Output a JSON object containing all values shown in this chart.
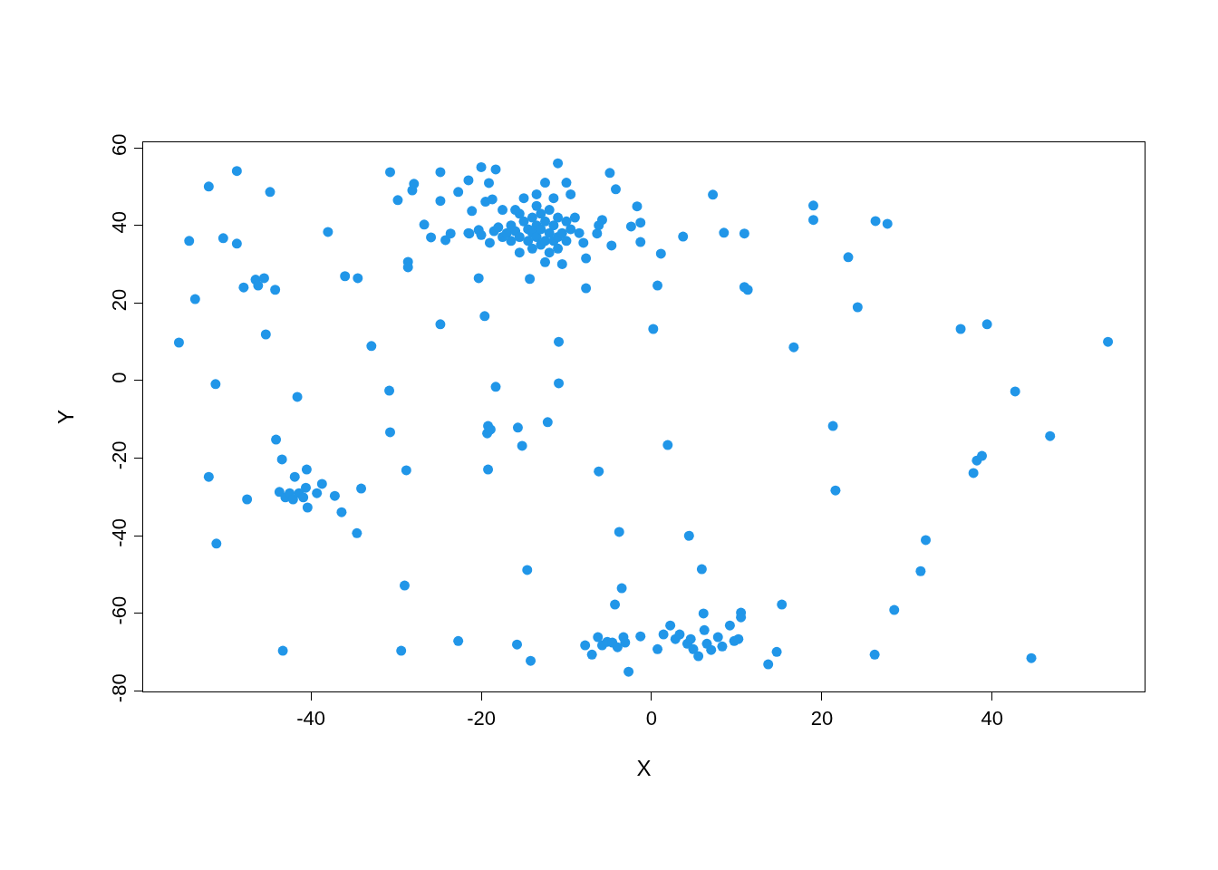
{
  "chart_data": {
    "type": "scatter",
    "xlabel": "X",
    "ylabel": "Y",
    "color": "#2196e8",
    "marker": "circle",
    "legend": false,
    "xlim": [
      -59.7,
      57.9
    ],
    "ylim": [
      -80.1,
      61.4
    ],
    "xticks": [
      -40,
      -20,
      0,
      20,
      40
    ],
    "yticks": [
      -80,
      -60,
      -40,
      -20,
      0,
      20,
      40,
      60
    ],
    "x": [
      -55.5,
      -54.3,
      -53.6,
      -52,
      -51.2,
      -52,
      -51.1,
      -50.3,
      -48.7,
      -48.7,
      -47.9,
      -47.5,
      -46.5,
      -46.2,
      -45.5,
      -45.3,
      -44.8,
      -44.2,
      -44.1,
      -43.4,
      -43.3,
      -43.7,
      -43.0,
      -42.5,
      -42.1,
      -41.9,
      -41.4,
      -40.9,
      -40.5,
      -40.4,
      -40.6,
      -39.3,
      -38.7,
      -37.2,
      -36.4,
      -34.6,
      -34.1,
      -41.6,
      -38,
      -36,
      -34.5,
      -32.9,
      -30.8,
      -30.7,
      -30.7,
      -29.8,
      -29.4,
      -29,
      -28.8,
      -28.6,
      -28.6,
      -28.1,
      -27.9,
      -26.7,
      -25.9,
      -24.8,
      -24.8,
      -24.8,
      -24.2,
      -23.6,
      -22.7,
      -22.7,
      -21.5,
      -21.4,
      -21.1,
      -20.3,
      -20.3,
      -20,
      -19.6,
      -19.5,
      -19.3,
      -19.2,
      -18.9,
      -19.2,
      -19.1,
      -18.7,
      -18.3,
      -18.3,
      -15.7,
      -15.2,
      -14.6,
      -14.2,
      -15.8,
      -14.3,
      -12.2,
      -10.9,
      -10.9,
      -11,
      -7.7,
      -7.7,
      -7.8,
      -7,
      -6.3,
      -5.8,
      -5.2,
      -4.6,
      -4,
      -3.3,
      -3.1,
      -6.2,
      -4.3,
      -3.5,
      -3.8,
      -2.7,
      -1.3,
      0.7,
      -4.9,
      -4.2,
      -4.7,
      -2.4,
      -1.7,
      -1.3,
      -1.3,
      -6.4,
      -5.8,
      -6.2,
      0.2,
      0.7,
      1.1,
      1.9,
      3.7,
      4.4,
      5.9,
      7.2,
      8.5,
      10.9,
      10.9,
      11.3,
      1.4,
      2.2,
      2.8,
      3.3,
      4.2,
      4.6,
      4.9,
      5.5,
      6.1,
      6.2,
      6.5,
      7,
      7.8,
      8.3,
      9.2,
      9.7,
      10.2,
      10.5,
      10.5,
      13.7,
      14.7,
      15.3,
      16.7,
      19,
      19,
      21.3,
      21.6,
      23.1,
      24.2,
      26.2,
      26.3,
      27.7,
      28.5,
      31.6,
      32.2,
      36.3,
      39.4,
      37.8,
      38.2,
      38.8,
      42.7,
      44.6,
      46.8,
      53.6,
      -18.5,
      -18,
      -17.5,
      -17,
      -16.5,
      -16.5,
      -16,
      -15.5,
      -15.5,
      -15.5,
      -15,
      -15,
      -14.5,
      -14.5,
      -14,
      -14,
      -14,
      -13.5,
      -13.5,
      -13.5,
      -13.5,
      -13,
      -13,
      -13,
      -12.5,
      -12.5,
      -12.5,
      -12.5,
      -12,
      -12,
      -12,
      -11.5,
      -11.5,
      -11.5,
      -11,
      -11,
      -11,
      -10.5,
      -10.5,
      -10,
      -10,
      -10,
      -9.5,
      -9.5,
      -9,
      -8.5,
      -8,
      -17.5,
      -16,
      -19,
      -20,
      -21.5
    ],
    "values": [
      9.8,
      36,
      21,
      50,
      -0.9,
      -24.8,
      -42,
      36.7,
      54,
      35.3,
      24,
      -30.6,
      26,
      24.5,
      26.4,
      11.9,
      48.6,
      23.4,
      -15.2,
      -20.3,
      -69.6,
      -28.7,
      -30.1,
      -29,
      -30.6,
      -24.8,
      -29,
      -30.1,
      -22.9,
      -32.7,
      -27.6,
      -29,
      -26.6,
      -29.7,
      -33.9,
      -39.3,
      -27.8,
      -4.2,
      38.3,
      26.9,
      26.4,
      8.9,
      -2.6,
      53.7,
      -13.3,
      46.5,
      -69.6,
      -52.8,
      -23.1,
      30.6,
      29.2,
      49,
      50.7,
      40.2,
      36.9,
      53.7,
      46.3,
      14.5,
      36.2,
      37.9,
      -67.1,
      48.6,
      51.6,
      37.9,
      43.7,
      38.8,
      26.4,
      55,
      16.6,
      46.1,
      -13.6,
      -11.7,
      -12.6,
      -22.9,
      50.9,
      46.7,
      54.4,
      -1.6,
      -12.1,
      -16.8,
      -48.8,
      -72.2,
      -68,
      26.2,
      -10.7,
      10,
      -0.7,
      56,
      23.8,
      31.5,
      -68.2,
      -70.6,
      -66.1,
      -68.2,
      -67.3,
      -67.5,
      -68.7,
      -66.1,
      -67.5,
      -23.4,
      -57.7,
      -53.5,
      -39,
      -75,
      -65.9,
      -69.2,
      53.5,
      49.3,
      34.8,
      39.7,
      44.9,
      40.7,
      35.7,
      37.9,
      41.4,
      40,
      13.3,
      24.5,
      32.7,
      -16.6,
      37.1,
      -40,
      -48.6,
      47.9,
      38.1,
      37.9,
      24.1,
      23.4,
      -65.4,
      -63.1,
      -66.6,
      -65.4,
      -67.8,
      -66.6,
      -69.2,
      -71,
      -60,
      -64.3,
      -67.8,
      -69.4,
      -66.1,
      -68.5,
      -63.1,
      -67.1,
      -66.6,
      -59.8,
      -61,
      -73.1,
      -69.9,
      -57.7,
      8.6,
      45.1,
      41.4,
      -11.7,
      -28.3,
      31.8,
      18.9,
      -70.6,
      41.1,
      40.4,
      -59.1,
      -49.1,
      -41.1,
      13.3,
      14.5,
      -23.8,
      -20.6,
      -19.4,
      -2.8,
      -71.5,
      -14.3,
      10,
      38.5,
      39.5,
      37,
      38,
      36,
      40,
      38.5,
      33,
      37,
      43,
      41,
      47,
      39,
      36,
      38,
      42,
      34,
      40,
      37,
      45,
      48,
      35,
      39,
      43,
      36,
      41,
      30.5,
      51,
      38,
      44,
      33,
      36,
      40,
      47,
      37,
      42,
      34,
      38,
      30,
      41,
      36,
      51,
      48,
      39,
      42,
      38,
      35.5,
      44,
      44,
      35.5,
      37.5,
      38
    ]
  }
}
